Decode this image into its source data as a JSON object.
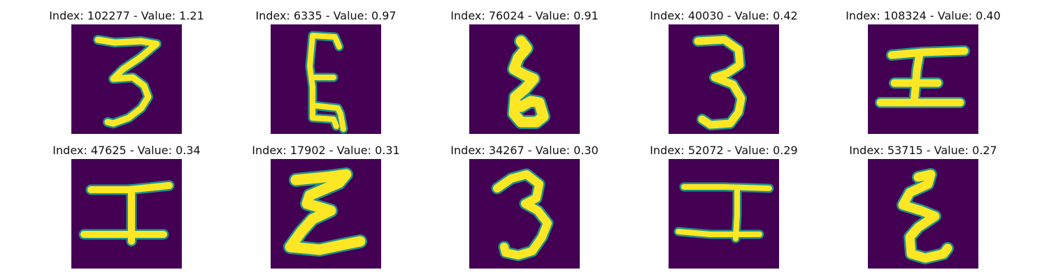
{
  "figure": {
    "cmap": "viridis",
    "background_color": "#440154",
    "stroke_color": "#fde725",
    "edge_color": "#21918c"
  },
  "panels": [
    {
      "title": "Index: 102277 - Value: 1.21",
      "glyph": "3",
      "index": 102277,
      "value": 1.21
    },
    {
      "title": "Index: 6335 - Value: 0.97",
      "glyph": "E",
      "index": 6335,
      "value": 0.97
    },
    {
      "title": "Index: 76024 - Value: 0.91",
      "glyph": "Ꮭ",
      "index": 76024,
      "value": 0.91
    },
    {
      "title": "Index: 40030 - Value: 0.42",
      "glyph": "3",
      "index": 40030,
      "value": 0.42
    },
    {
      "title": "Index: 108324 - Value: 0.40",
      "glyph": "工",
      "index": 108324,
      "value": 0.4
    },
    {
      "title": "Index: 47625 - Value: 0.34",
      "glyph": "工",
      "index": 47625,
      "value": 0.34
    },
    {
      "title": "Index: 17902 - Value: 0.31",
      "glyph": "Ƹ",
      "index": 17902,
      "value": 0.31
    },
    {
      "title": "Index: 34267 - Value: 0.30",
      "glyph": "3",
      "index": 34267,
      "value": 0.3
    },
    {
      "title": "Index: 52072 - Value: 0.29",
      "glyph": "工",
      "index": 52072,
      "value": 0.29
    },
    {
      "title": "Index: 53715 - Value: 0.27",
      "glyph": "Ƹ",
      "index": 53715,
      "value": 0.27
    }
  ]
}
